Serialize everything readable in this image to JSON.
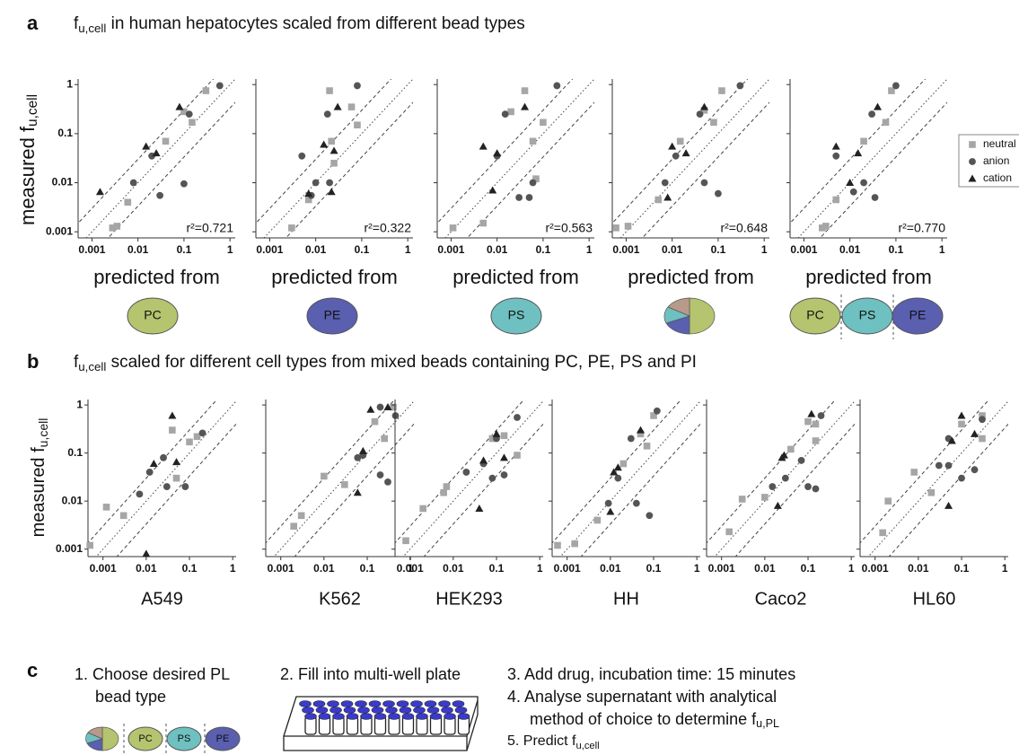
{
  "panel_a": {
    "label": "a",
    "title": [
      "f",
      "u,cell",
      " in human hepatocytes scaled from different bead types"
    ],
    "ylabel": [
      "measured f",
      "u,cell"
    ],
    "beads": [
      [
        "PC"
      ],
      [
        "PE"
      ],
      [
        "PS"
      ],
      [],
      [
        "PC",
        "PS",
        "PE"
      ]
    ]
  },
  "panel_b": {
    "label": "b",
    "title": [
      "f",
      "u,cell",
      " scaled for different cell types from mixed beads containing PC, PE, PS and PI"
    ],
    "ylabel": [
      "measured f",
      "u,cell"
    ]
  },
  "panel_c": {
    "label": "c",
    "step1": [
      "1. Choose desired PL",
      "bead type"
    ],
    "step2": "2. Fill into multi-well plate",
    "step3": "3. Add drug, incubation time: 15 minutes",
    "step4": [
      "4. Analyse supernatant with analytical",
      "method of choice to determine f",
      "u,PL"
    ],
    "step5": [
      "5. Predict f",
      "u,cell"
    ],
    "beads": [
      "PC",
      "PS",
      "PE"
    ]
  },
  "legend": [
    "neutral",
    "anion",
    "cation"
  ],
  "chart_data": [
    {
      "type": "scatter",
      "log_x": true,
      "log_y": true,
      "xlim": [
        0.0005,
        1.3
      ],
      "ylim": [
        0.00075,
        1.3
      ],
      "xticks": [
        0.001,
        0.01,
        0.1,
        1
      ],
      "yticks": [
        0.001,
        0.01,
        0.1,
        1
      ],
      "xlabel": "predicted from",
      "annotation": "r²=0.721",
      "series": [
        {
          "color": "#a6a6a6",
          "marker": "square",
          "x": [
            0.0028,
            0.0035,
            0.006,
            0.04,
            0.1,
            0.15,
            0.3
          ],
          "y": [
            0.0012,
            0.0013,
            0.004,
            0.07,
            0.28,
            0.17,
            0.75
          ]
        },
        {
          "color": "#555555",
          "marker": "circle",
          "x": [
            0.008,
            0.02,
            0.03,
            0.1,
            0.13,
            0.6
          ],
          "y": [
            0.01,
            0.035,
            0.0055,
            0.0095,
            0.25,
            0.95
          ]
        },
        {
          "color": "#222222",
          "marker": "triangle",
          "x": [
            0.0015,
            0.015,
            0.025,
            0.08
          ],
          "y": [
            0.0065,
            0.055,
            0.04,
            0.35
          ]
        }
      ]
    },
    {
      "type": "scatter",
      "log_x": true,
      "log_y": true,
      "xlim": [
        0.0005,
        1.3
      ],
      "ylim": [
        0.00075,
        1.3
      ],
      "xticks": [
        0.001,
        0.01,
        0.1,
        1
      ],
      "yticks": [
        0.001,
        0.01,
        0.1,
        1
      ],
      "xlabel": "predicted from",
      "annotation": "r²=0.322",
      "series": [
        {
          "color": "#a6a6a6",
          "marker": "square",
          "x": [
            0.003,
            0.007,
            0.02,
            0.022,
            0.025,
            0.08,
            0.06
          ],
          "y": [
            0.0012,
            0.0045,
            0.75,
            0.07,
            0.025,
            0.15,
            0.35
          ]
        },
        {
          "color": "#555555",
          "marker": "circle",
          "x": [
            0.005,
            0.008,
            0.01,
            0.018,
            0.02,
            0.08
          ],
          "y": [
            0.035,
            0.0055,
            0.01,
            0.25,
            0.01,
            0.95
          ]
        },
        {
          "color": "#222222",
          "marker": "triangle",
          "x": [
            0.007,
            0.015,
            0.03,
            0.025,
            0.022
          ],
          "y": [
            0.006,
            0.06,
            0.35,
            0.045,
            0.0065
          ]
        }
      ]
    },
    {
      "type": "scatter",
      "log_x": true,
      "log_y": true,
      "xlim": [
        0.0005,
        1.3
      ],
      "ylim": [
        0.00075,
        1.3
      ],
      "xticks": [
        0.001,
        0.01,
        0.1,
        1
      ],
      "yticks": [
        0.001,
        0.01,
        0.1,
        1
      ],
      "xlabel": "predicted from",
      "annotation": "r²=0.563",
      "series": [
        {
          "color": "#a6a6a6",
          "marker": "square",
          "x": [
            0.0011,
            0.005,
            0.02,
            0.04,
            0.06,
            0.1,
            0.07
          ],
          "y": [
            0.0012,
            0.0015,
            0.28,
            0.75,
            0.07,
            0.17,
            0.012
          ]
        },
        {
          "color": "#555555",
          "marker": "circle",
          "x": [
            0.01,
            0.015,
            0.05,
            0.06,
            0.2,
            0.03
          ],
          "y": [
            0.035,
            0.25,
            0.005,
            0.01,
            0.95,
            0.005
          ]
        },
        {
          "color": "#222222",
          "marker": "triangle",
          "x": [
            0.005,
            0.008,
            0.01,
            0.04
          ],
          "y": [
            0.055,
            0.007,
            0.04,
            0.35
          ]
        }
      ]
    },
    {
      "type": "scatter",
      "log_x": true,
      "log_y": true,
      "xlim": [
        0.0005,
        1.3
      ],
      "ylim": [
        0.00075,
        1.3
      ],
      "xticks": [
        0.001,
        0.01,
        0.1,
        1
      ],
      "yticks": [
        0.001,
        0.01,
        0.1,
        1
      ],
      "xlabel": "predicted from",
      "annotation": "r²=0.648",
      "series": [
        {
          "color": "#a6a6a6",
          "marker": "square",
          "x": [
            0.0006,
            0.0011,
            0.005,
            0.015,
            0.05,
            0.12,
            0.08
          ],
          "y": [
            0.0012,
            0.0013,
            0.0045,
            0.07,
            0.3,
            0.75,
            0.17
          ]
        },
        {
          "color": "#555555",
          "marker": "circle",
          "x": [
            0.007,
            0.012,
            0.04,
            0.05,
            0.1,
            0.3
          ],
          "y": [
            0.01,
            0.035,
            0.25,
            0.01,
            0.006,
            0.95
          ]
        },
        {
          "color": "#222222",
          "marker": "triangle",
          "x": [
            0.008,
            0.01,
            0.02,
            0.05
          ],
          "y": [
            0.005,
            0.055,
            0.04,
            0.35
          ]
        }
      ]
    },
    {
      "type": "scatter",
      "log_x": true,
      "log_y": true,
      "xlim": [
        0.0005,
        1.3
      ],
      "ylim": [
        0.00075,
        1.3
      ],
      "xticks": [
        0.001,
        0.01,
        0.1,
        1
      ],
      "yticks": [
        0.001,
        0.01,
        0.1,
        1
      ],
      "xlabel": "predicted from",
      "annotation": "r²=0.770",
      "series": [
        {
          "color": "#a6a6a6",
          "marker": "square",
          "x": [
            0.0025,
            0.003,
            0.005,
            0.02,
            0.06,
            0.08
          ],
          "y": [
            0.0012,
            0.0013,
            0.0045,
            0.07,
            0.17,
            0.75
          ]
        },
        {
          "color": "#555555",
          "marker": "circle",
          "x": [
            0.005,
            0.02,
            0.035,
            0.03,
            0.1,
            0.012
          ],
          "y": [
            0.035,
            0.01,
            0.005,
            0.25,
            0.95,
            0.0065
          ]
        },
        {
          "color": "#222222",
          "marker": "triangle",
          "x": [
            0.005,
            0.01,
            0.015,
            0.04
          ],
          "y": [
            0.055,
            0.01,
            0.04,
            0.35
          ]
        }
      ]
    },
    {
      "type": "scatter",
      "log_x": true,
      "log_y": true,
      "xlim": [
        0.00045,
        1.2
      ],
      "ylim": [
        0.0007,
        1.3
      ],
      "xticks": [
        0.001,
        0.01,
        0.1,
        1
      ],
      "yticks": [
        0.001,
        0.01,
        0.1,
        1
      ],
      "xlabel": "A549",
      "series": [
        {
          "color": "#a6a6a6",
          "marker": "square",
          "x": [
            0.0005,
            0.0012,
            0.003,
            0.04,
            0.05,
            0.1,
            0.15
          ],
          "y": [
            0.0012,
            0.0075,
            0.005,
            0.3,
            0.03,
            0.17,
            0.22
          ]
        },
        {
          "color": "#555555",
          "marker": "circle",
          "x": [
            0.007,
            0.012,
            0.025,
            0.03,
            0.08,
            0.2
          ],
          "y": [
            0.014,
            0.04,
            0.08,
            0.02,
            0.02,
            0.26
          ]
        },
        {
          "color": "#222222",
          "marker": "triangle",
          "x": [
            0.01,
            0.015,
            0.04,
            0.05
          ],
          "y": [
            0.0008,
            0.06,
            0.6,
            0.065
          ]
        }
      ]
    },
    {
      "type": "scatter",
      "log_x": true,
      "log_y": true,
      "xlim": [
        0.00045,
        1.2
      ],
      "ylim": [
        0.0007,
        1.3
      ],
      "xticks": [
        0.001,
        0.01,
        0.1,
        1
      ],
      "yticks": [
        0.001,
        0.01,
        0.1,
        1
      ],
      "xlabel": "K562",
      "series": [
        {
          "color": "#a6a6a6",
          "marker": "square",
          "x": [
            0.002,
            0.003,
            0.01,
            0.03,
            0.15,
            0.25,
            0.4
          ],
          "y": [
            0.003,
            0.005,
            0.033,
            0.022,
            0.45,
            0.2,
            0.9
          ]
        },
        {
          "color": "#555555",
          "marker": "circle",
          "x": [
            0.06,
            0.08,
            0.2,
            0.3,
            0.45,
            0.2
          ],
          "y": [
            0.08,
            0.09,
            0.035,
            0.025,
            0.6,
            0.9
          ]
        },
        {
          "color": "#222222",
          "marker": "triangle",
          "x": [
            0.06,
            0.08,
            0.12,
            0.3
          ],
          "y": [
            0.015,
            0.11,
            0.8,
            0.9
          ]
        }
      ]
    },
    {
      "type": "scatter",
      "log_x": true,
      "log_y": true,
      "xlim": [
        0.00045,
        1.2
      ],
      "ylim": [
        0.0007,
        1.3
      ],
      "xticks": [
        0.001,
        0.01,
        0.1,
        1
      ],
      "yticks": [
        0.001,
        0.01,
        0.1,
        1
      ],
      "xlabel": "HEK293",
      "series": [
        {
          "color": "#a6a6a6",
          "marker": "square",
          "x": [
            0.0008,
            0.002,
            0.007,
            0.006,
            0.08,
            0.15,
            0.3
          ],
          "y": [
            0.0015,
            0.007,
            0.02,
            0.015,
            0.2,
            0.23,
            0.09
          ]
        },
        {
          "color": "#555555",
          "marker": "circle",
          "x": [
            0.02,
            0.05,
            0.08,
            0.15,
            0.3,
            0.1
          ],
          "y": [
            0.04,
            0.06,
            0.03,
            0.035,
            0.55,
            0.2
          ]
        },
        {
          "color": "#222222",
          "marker": "triangle",
          "x": [
            0.04,
            0.05,
            0.1,
            0.15
          ],
          "y": [
            0.007,
            0.07,
            0.25,
            0.08
          ]
        }
      ]
    },
    {
      "type": "scatter",
      "log_x": true,
      "log_y": true,
      "xlim": [
        0.00045,
        1.2
      ],
      "ylim": [
        0.0007,
        1.3
      ],
      "xticks": [
        0.001,
        0.01,
        0.1,
        1
      ],
      "yticks": [
        0.001,
        0.01,
        0.1,
        1
      ],
      "xlabel": "HH",
      "series": [
        {
          "color": "#a6a6a6",
          "marker": "square",
          "x": [
            0.0006,
            0.0015,
            0.005,
            0.02,
            0.05,
            0.07,
            0.1
          ],
          "y": [
            0.0012,
            0.0013,
            0.004,
            0.06,
            0.25,
            0.14,
            0.6
          ]
        },
        {
          "color": "#555555",
          "marker": "circle",
          "x": [
            0.009,
            0.015,
            0.03,
            0.04,
            0.08,
            0.12
          ],
          "y": [
            0.009,
            0.03,
            0.2,
            0.009,
            0.005,
            0.75
          ]
        },
        {
          "color": "#222222",
          "marker": "triangle",
          "x": [
            0.01,
            0.012,
            0.015,
            0.05
          ],
          "y": [
            0.006,
            0.04,
            0.05,
            0.3
          ]
        }
      ]
    },
    {
      "type": "scatter",
      "log_x": true,
      "log_y": true,
      "xlim": [
        0.00045,
        1.2
      ],
      "ylim": [
        0.0007,
        1.3
      ],
      "xticks": [
        0.001,
        0.01,
        0.1,
        1
      ],
      "yticks": [
        0.001,
        0.01,
        0.1,
        1
      ],
      "xlabel": "Caco2",
      "series": [
        {
          "color": "#a6a6a6",
          "marker": "square",
          "x": [
            0.0015,
            0.003,
            0.01,
            0.04,
            0.1,
            0.15,
            0.15
          ],
          "y": [
            0.0023,
            0.011,
            0.012,
            0.12,
            0.45,
            0.4,
            0.18
          ]
        },
        {
          "color": "#555555",
          "marker": "circle",
          "x": [
            0.015,
            0.03,
            0.07,
            0.1,
            0.15,
            0.2
          ],
          "y": [
            0.02,
            0.03,
            0.07,
            0.02,
            0.018,
            0.6
          ]
        },
        {
          "color": "#222222",
          "marker": "triangle",
          "x": [
            0.02,
            0.025,
            0.028,
            0.12
          ],
          "y": [
            0.008,
            0.08,
            0.09,
            0.65
          ]
        }
      ]
    },
    {
      "type": "scatter",
      "log_x": true,
      "log_y": true,
      "xlim": [
        0.00045,
        1.2
      ],
      "ylim": [
        0.0007,
        1.3
      ],
      "xticks": [
        0.001,
        0.01,
        0.1,
        1
      ],
      "yticks": [
        0.001,
        0.01,
        0.1,
        1
      ],
      "xlabel": "HL60",
      "series": [
        {
          "color": "#a6a6a6",
          "marker": "square",
          "x": [
            0.0015,
            0.002,
            0.008,
            0.02,
            0.1,
            0.3,
            0.3
          ],
          "y": [
            0.0022,
            0.01,
            0.04,
            0.015,
            0.4,
            0.6,
            0.2
          ]
        },
        {
          "color": "#555555",
          "marker": "circle",
          "x": [
            0.03,
            0.05,
            0.1,
            0.2,
            0.3,
            0.05
          ],
          "y": [
            0.055,
            0.055,
            0.03,
            0.045,
            0.5,
            0.2
          ]
        },
        {
          "color": "#222222",
          "marker": "triangle",
          "x": [
            0.05,
            0.06,
            0.1,
            0.2
          ],
          "y": [
            0.008,
            0.18,
            0.6,
            0.25
          ]
        }
      ]
    }
  ]
}
